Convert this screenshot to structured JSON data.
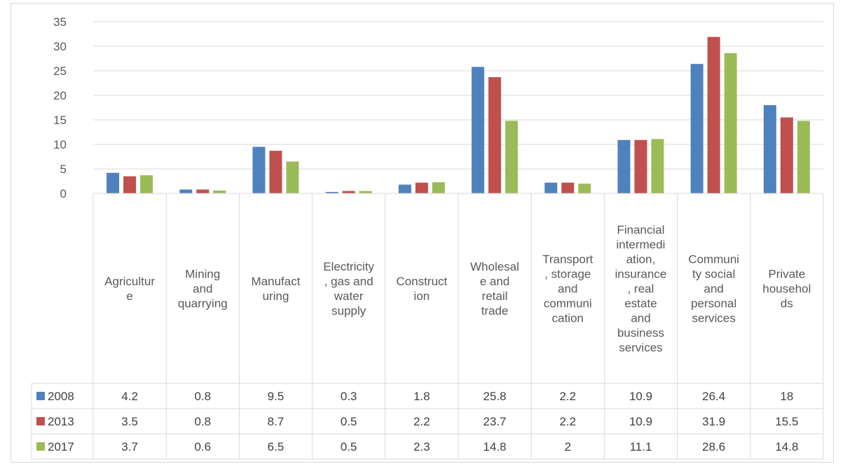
{
  "chart_data": {
    "type": "bar",
    "title": "",
    "xlabel": "",
    "ylabel": "",
    "ylim": [
      0,
      35
    ],
    "yticks": [
      0,
      5,
      10,
      15,
      20,
      25,
      30,
      35
    ],
    "grid": true,
    "legend": "data-table",
    "categories": [
      "Agriculture",
      "Mining and quarrying",
      "Manufacturing",
      "Electricity, gas and water supply",
      "Construction",
      "Wholesale and retail trade",
      "Transport, storage and communication",
      "Financial intermediation, insurance, real estate and business services",
      "Community social and personal services",
      "Private households"
    ],
    "category_label_lines": [
      [
        "Agricultur",
        "e"
      ],
      [
        "Mining",
        "and",
        "quarrying"
      ],
      [
        "Manufact",
        "uring"
      ],
      [
        "Electricity",
        ", gas and",
        "water",
        "supply"
      ],
      [
        "Construct",
        "ion"
      ],
      [
        "Wholesal",
        "e and",
        "retail",
        "trade"
      ],
      [
        "Transport",
        ", storage",
        "and",
        "communi",
        "cation"
      ],
      [
        "Financial",
        "intermedi",
        "ation,",
        "insurance",
        ", real",
        "estate",
        "and",
        "business",
        "services"
      ],
      [
        "Communi",
        "ty social",
        "and",
        "personal",
        "services"
      ],
      [
        "Private",
        "househol",
        "ds"
      ]
    ],
    "series": [
      {
        "name": "2008",
        "color": "#4f81bd",
        "values": [
          4.2,
          0.8,
          9.5,
          0.3,
          1.8,
          25.8,
          2.2,
          10.9,
          26.4,
          18
        ],
        "labels": [
          "4.2",
          "0.8",
          "9.5",
          "0.3",
          "1.8",
          "25.8",
          "2.2",
          "10.9",
          "26.4",
          "18"
        ]
      },
      {
        "name": "2013",
        "color": "#c0504d",
        "values": [
          3.5,
          0.8,
          8.7,
          0.5,
          2.2,
          23.7,
          2.2,
          10.9,
          31.9,
          15.5
        ],
        "labels": [
          "3.5",
          "0.8",
          "8.7",
          "0.5",
          "2.2",
          "23.7",
          "2.2",
          "10.9",
          "31.9",
          "15.5"
        ]
      },
      {
        "name": "2017",
        "color": "#9bbb59",
        "values": [
          3.7,
          0.6,
          6.5,
          0.5,
          2.3,
          14.8,
          2,
          11.1,
          28.6,
          14.8
        ],
        "labels": [
          "3.7",
          "0.6",
          "6.5",
          "0.5",
          "2.3",
          "14.8",
          "2",
          "11.1",
          "28.6",
          "14.8"
        ]
      }
    ]
  }
}
